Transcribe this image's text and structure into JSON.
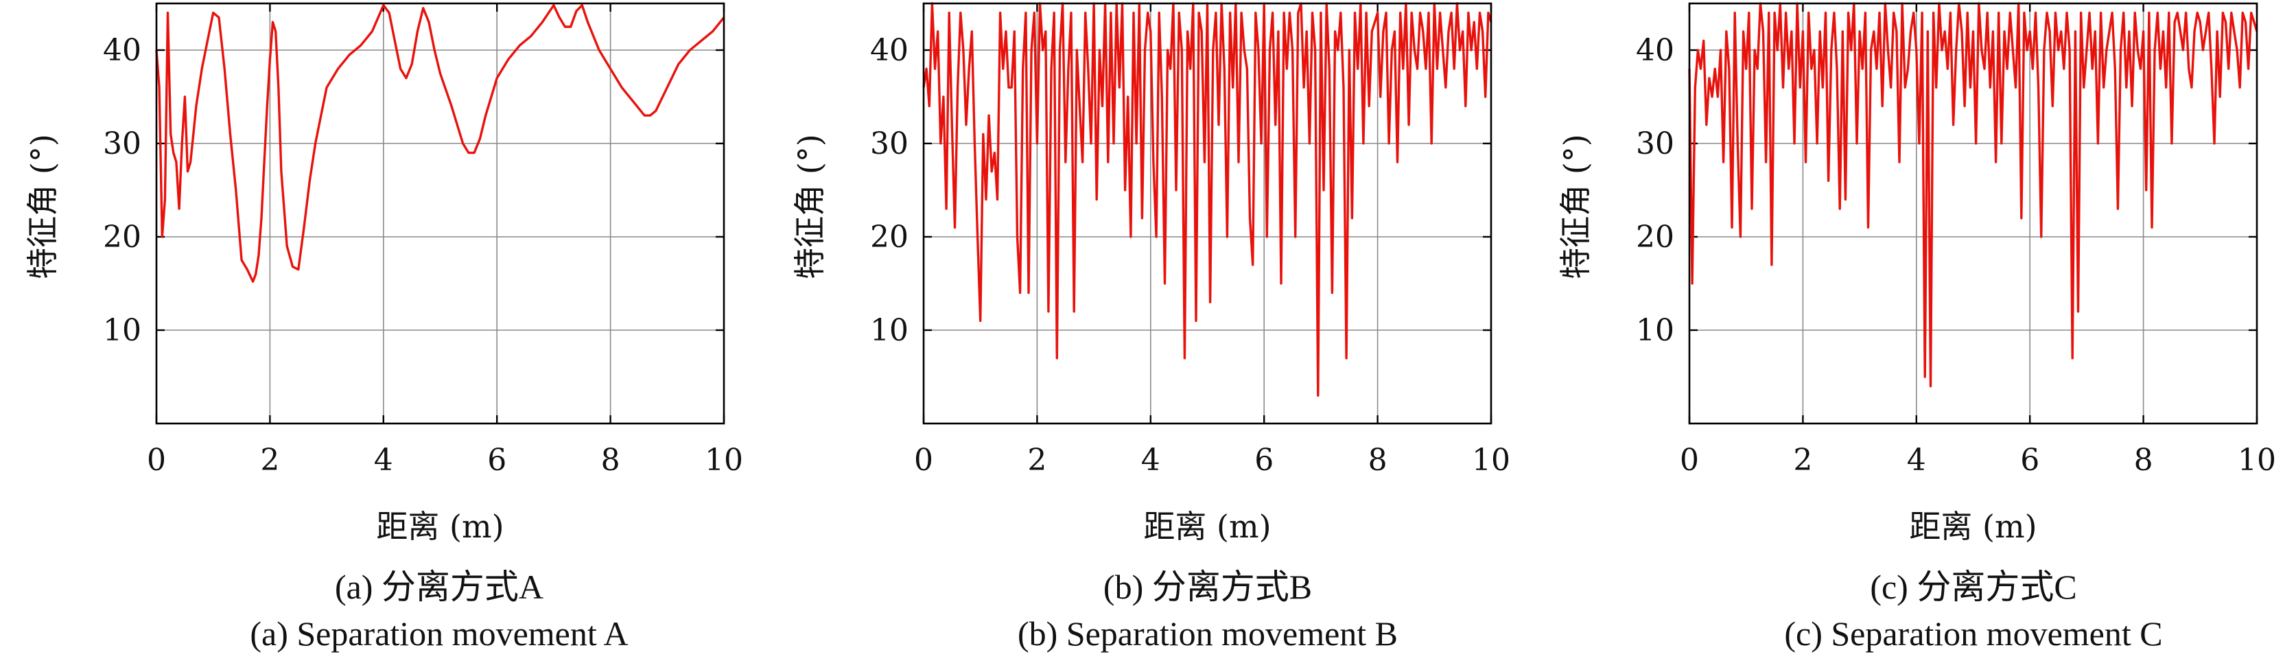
{
  "chart_data": [
    {
      "type": "line",
      "xlabel": "距离 (m)",
      "ylabel": "特征角 (°)",
      "xlim": [
        0,
        10
      ],
      "ylim": [
        0,
        45
      ],
      "xticks": [
        "0",
        "2",
        "4",
        "6",
        "8",
        "10"
      ],
      "yticks": [
        "10",
        "20",
        "30",
        "40"
      ],
      "grid": true,
      "color": "#e8120c",
      "caption_cn": "(a) 分离方式A",
      "caption_en": "(a) Separation movement A",
      "x": [
        0,
        0.05,
        0.1,
        0.15,
        0.2,
        0.25,
        0.3,
        0.35,
        0.4,
        0.45,
        0.5,
        0.55,
        0.6,
        0.65,
        0.7,
        0.8,
        0.9,
        1.0,
        1.1,
        1.2,
        1.3,
        1.4,
        1.5,
        1.6,
        1.7,
        1.75,
        1.8,
        1.85,
        1.9,
        1.95,
        2.0,
        2.05,
        2.1,
        2.15,
        2.2,
        2.3,
        2.4,
        2.5,
        2.6,
        2.7,
        2.8,
        2.9,
        3.0,
        3.2,
        3.4,
        3.6,
        3.8,
        4.0,
        4.1,
        4.2,
        4.3,
        4.4,
        4.5,
        4.6,
        4.7,
        4.8,
        4.9,
        5.0,
        5.2,
        5.4,
        5.5,
        5.6,
        5.7,
        5.8,
        6.0,
        6.2,
        6.4,
        6.6,
        6.8,
        7.0,
        7.1,
        7.2,
        7.3,
        7.4,
        7.5,
        7.6,
        7.8,
        8.0,
        8.2,
        8.4,
        8.6,
        8.7,
        8.8,
        9.0,
        9.2,
        9.4,
        9.6,
        9.8,
        10.0
      ],
      "y": [
        40,
        36,
        20,
        24,
        44,
        31,
        29,
        28,
        23,
        30,
        35,
        27,
        28,
        31,
        34,
        38,
        41,
        44,
        43.5,
        38,
        31,
        25,
        17.5,
        16.5,
        15.2,
        16,
        18,
        22,
        28,
        34,
        39,
        43,
        42,
        36,
        27,
        19,
        16.8,
        16.5,
        21,
        26,
        30,
        33,
        36,
        38,
        39.5,
        40.5,
        42,
        44.8,
        44,
        41,
        38,
        37,
        38.5,
        42,
        44.5,
        43,
        40,
        37.5,
        34,
        30,
        29,
        29,
        30.5,
        33,
        37,
        39,
        40.5,
        41.5,
        43,
        44.8,
        43.5,
        42.5,
        42.5,
        44.2,
        44.8,
        43,
        40,
        38,
        36,
        34.5,
        33,
        33,
        33.5,
        36,
        38.5,
        40,
        41,
        42,
        43.5
      ]
    },
    {
      "type": "line",
      "xlabel": "距离 (m)",
      "ylabel": "特征角 (°)",
      "xlim": [
        0,
        10
      ],
      "ylim": [
        0,
        45
      ],
      "xticks": [
        "0",
        "2",
        "4",
        "6",
        "8",
        "10"
      ],
      "yticks": [
        "10",
        "20",
        "30",
        "40"
      ],
      "grid": true,
      "color": "#e8120c",
      "caption_cn": "(b) 分离方式B",
      "caption_en": "(b) Separation movement B",
      "x": [
        0,
        0.05,
        0.1,
        0.15,
        0.2,
        0.25,
        0.3,
        0.35,
        0.4,
        0.45,
        0.5,
        0.55,
        0.6,
        0.65,
        0.7,
        0.75,
        0.8,
        0.85,
        0.9,
        0.95,
        1.0,
        1.05,
        1.1,
        1.15,
        1.2,
        1.25,
        1.3,
        1.35,
        1.4,
        1.45,
        1.5,
        1.55,
        1.6,
        1.65,
        1.7,
        1.75,
        1.8,
        1.85,
        1.9,
        1.95,
        2.0,
        2.05,
        2.1,
        2.15,
        2.2,
        2.25,
        2.3,
        2.35,
        2.4,
        2.45,
        2.5,
        2.55,
        2.6,
        2.65,
        2.7,
        2.75,
        2.8,
        2.85,
        2.9,
        2.95,
        3.0,
        3.05,
        3.1,
        3.15,
        3.2,
        3.25,
        3.3,
        3.35,
        3.4,
        3.45,
        3.5,
        3.55,
        3.6,
        3.65,
        3.7,
        3.75,
        3.8,
        3.85,
        3.9,
        3.95,
        4.0,
        4.05,
        4.1,
        4.15,
        4.2,
        4.25,
        4.3,
        4.35,
        4.4,
        4.45,
        4.5,
        4.55,
        4.6,
        4.65,
        4.7,
        4.75,
        4.8,
        4.85,
        4.9,
        4.95,
        5.0,
        5.05,
        5.1,
        5.15,
        5.2,
        5.25,
        5.3,
        5.35,
        5.4,
        5.45,
        5.5,
        5.55,
        5.6,
        5.65,
        5.7,
        5.75,
        5.8,
        5.85,
        5.9,
        5.95,
        6.0,
        6.05,
        6.1,
        6.15,
        6.2,
        6.25,
        6.3,
        6.35,
        6.4,
        6.45,
        6.5,
        6.55,
        6.6,
        6.65,
        6.7,
        6.75,
        6.8,
        6.85,
        6.9,
        6.95,
        7.0,
        7.05,
        7.1,
        7.15,
        7.2,
        7.25,
        7.3,
        7.35,
        7.4,
        7.45,
        7.5,
        7.55,
        7.6,
        7.65,
        7.7,
        7.75,
        7.8,
        7.85,
        7.9,
        7.95,
        8.0,
        8.05,
        8.1,
        8.15,
        8.2,
        8.25,
        8.3,
        8.35,
        8.4,
        8.45,
        8.5,
        8.55,
        8.6,
        8.65,
        8.7,
        8.75,
        8.8,
        8.85,
        8.9,
        8.95,
        9.0,
        9.05,
        9.1,
        9.15,
        9.2,
        9.25,
        9.3,
        9.35,
        9.4,
        9.45,
        9.5,
        9.55,
        9.6,
        9.65,
        9.7,
        9.75,
        9.8,
        9.85,
        9.9,
        9.95,
        10.0
      ],
      "y": [
        36,
        38,
        34,
        45,
        38,
        42,
        30,
        35,
        23,
        44,
        32,
        21,
        36,
        44,
        40,
        32,
        38,
        42,
        30,
        20,
        11,
        31,
        24,
        33,
        27,
        29,
        24,
        44,
        38,
        42,
        36,
        36,
        42,
        20,
        14,
        38,
        44,
        14,
        40,
        44,
        30,
        45,
        40,
        42,
        12,
        38,
        44,
        7,
        40,
        45,
        28,
        38,
        44,
        12,
        40,
        34,
        28,
        44,
        38,
        30,
        45,
        24,
        40,
        34,
        45,
        28,
        44,
        30,
        45,
        36,
        45,
        25,
        35,
        20,
        44,
        30,
        45,
        22,
        40,
        44,
        42,
        28,
        20,
        44,
        35,
        15,
        40,
        38,
        45,
        25,
        44,
        40,
        7,
        42,
        38,
        45,
        11,
        44,
        42,
        28,
        45,
        13,
        40,
        44,
        32,
        45,
        38,
        20,
        44,
        36,
        45,
        28,
        44,
        40,
        38,
        22,
        17,
        44,
        40,
        30,
        45,
        20,
        40,
        44,
        32,
        42,
        15,
        44,
        38,
        44,
        40,
        20,
        44,
        45,
        36,
        42,
        30,
        44,
        40,
        3,
        44,
        25,
        45,
        38,
        14,
        42,
        40,
        44,
        36,
        7,
        40,
        22,
        44,
        38,
        45,
        30,
        44,
        34,
        42,
        43,
        44,
        35,
        42,
        44,
        30,
        40,
        42,
        28,
        44,
        38,
        45,
        32,
        44,
        40,
        38,
        44,
        42,
        38,
        44,
        30,
        45,
        38,
        44,
        40,
        36,
        42,
        44,
        38,
        45,
        40,
        42,
        34,
        44,
        40,
        43,
        38,
        44,
        42,
        35,
        44,
        43
      ]
    },
    {
      "type": "line",
      "xlabel": "距离 (m)",
      "ylabel": "特征角 (°)",
      "xlim": [
        0,
        10
      ],
      "ylim": [
        0,
        45
      ],
      "xticks": [
        "0",
        "2",
        "4",
        "6",
        "8",
        "10"
      ],
      "yticks": [
        "10",
        "20",
        "30",
        "40"
      ],
      "grid": true,
      "color": "#e8120c",
      "caption_cn": "(c) 分离方式C",
      "caption_en": "(c) Separation movement C",
      "x": [
        0,
        0.05,
        0.1,
        0.15,
        0.2,
        0.25,
        0.3,
        0.35,
        0.4,
        0.45,
        0.5,
        0.55,
        0.6,
        0.65,
        0.7,
        0.75,
        0.8,
        0.85,
        0.9,
        0.95,
        1.0,
        1.05,
        1.1,
        1.15,
        1.2,
        1.25,
        1.3,
        1.35,
        1.4,
        1.45,
        1.5,
        1.55,
        1.6,
        1.65,
        1.7,
        1.75,
        1.8,
        1.85,
        1.9,
        1.95,
        2.0,
        2.05,
        2.1,
        2.15,
        2.2,
        2.25,
        2.3,
        2.35,
        2.4,
        2.45,
        2.5,
        2.55,
        2.6,
        2.65,
        2.7,
        2.75,
        2.8,
        2.85,
        2.9,
        2.95,
        3.0,
        3.05,
        3.1,
        3.15,
        3.2,
        3.25,
        3.3,
        3.35,
        3.4,
        3.45,
        3.5,
        3.55,
        3.6,
        3.65,
        3.7,
        3.75,
        3.8,
        3.85,
        3.9,
        3.95,
        4.0,
        4.05,
        4.1,
        4.15,
        4.2,
        4.25,
        4.3,
        4.35,
        4.4,
        4.45,
        4.5,
        4.55,
        4.6,
        4.65,
        4.7,
        4.75,
        4.8,
        4.85,
        4.9,
        4.95,
        5.0,
        5.05,
        5.1,
        5.15,
        5.2,
        5.25,
        5.3,
        5.35,
        5.4,
        5.45,
        5.5,
        5.55,
        5.6,
        5.65,
        5.7,
        5.75,
        5.8,
        5.85,
        5.9,
        5.95,
        6.0,
        6.05,
        6.1,
        6.15,
        6.2,
        6.25,
        6.3,
        6.35,
        6.4,
        6.45,
        6.5,
        6.55,
        6.6,
        6.65,
        6.7,
        6.75,
        6.8,
        6.85,
        6.9,
        6.95,
        7.0,
        7.05,
        7.1,
        7.15,
        7.2,
        7.25,
        7.3,
        7.35,
        7.4,
        7.45,
        7.5,
        7.55,
        7.6,
        7.65,
        7.7,
        7.75,
        7.8,
        7.85,
        7.9,
        7.95,
        8.0,
        8.05,
        8.1,
        8.15,
        8.2,
        8.25,
        8.3,
        8.35,
        8.4,
        8.45,
        8.5,
        8.55,
        8.6,
        8.65,
        8.7,
        8.75,
        8.8,
        8.85,
        8.9,
        8.95,
        9.0,
        9.05,
        9.1,
        9.15,
        9.2,
        9.25,
        9.3,
        9.35,
        9.4,
        9.45,
        9.5,
        9.55,
        9.6,
        9.65,
        9.7,
        9.75,
        9.8,
        9.85,
        9.9,
        9.95,
        10.0
      ],
      "y": [
        38,
        15,
        36,
        40,
        38,
        41,
        32,
        37,
        35,
        38,
        35,
        40,
        28,
        42,
        38,
        21,
        44,
        30,
        20,
        42,
        38,
        44,
        23,
        40,
        38,
        45,
        42,
        28,
        44,
        17,
        44,
        40,
        45,
        36,
        44,
        38,
        42,
        30,
        45,
        36,
        42,
        28,
        44,
        38,
        40,
        30,
        42,
        36,
        44,
        26,
        40,
        44,
        38,
        23,
        42,
        24,
        44,
        40,
        45,
        30,
        42,
        38,
        44,
        21,
        40,
        42,
        38,
        44,
        34,
        45,
        40,
        36,
        44,
        42,
        28,
        45,
        36,
        38,
        42,
        44,
        40,
        30,
        44,
        5,
        42,
        4,
        44,
        36,
        45,
        40,
        42,
        38,
        44,
        32,
        40,
        45,
        42,
        34,
        44,
        36,
        42,
        30,
        45,
        40,
        38,
        44,
        36,
        42,
        28,
        44,
        30,
        42,
        38,
        44,
        40,
        36,
        45,
        22,
        44,
        40,
        42,
        38,
        44,
        36,
        20,
        40,
        44,
        42,
        34,
        44,
        40,
        42,
        38,
        44,
        40,
        7,
        42,
        12,
        44,
        36,
        40,
        44,
        38,
        42,
        30,
        44,
        36,
        40,
        42,
        44,
        38,
        23,
        40,
        44,
        36,
        42,
        34,
        44,
        40,
        38,
        42,
        25,
        44,
        21,
        40,
        44,
        38,
        42,
        36,
        44,
        30,
        43,
        44,
        42,
        40,
        44,
        38,
        36,
        42,
        44,
        43,
        40,
        42,
        44,
        38,
        30,
        42,
        35,
        44,
        43,
        38,
        44,
        42,
        40,
        36,
        44,
        43,
        38,
        44,
        43,
        42
      ]
    }
  ]
}
